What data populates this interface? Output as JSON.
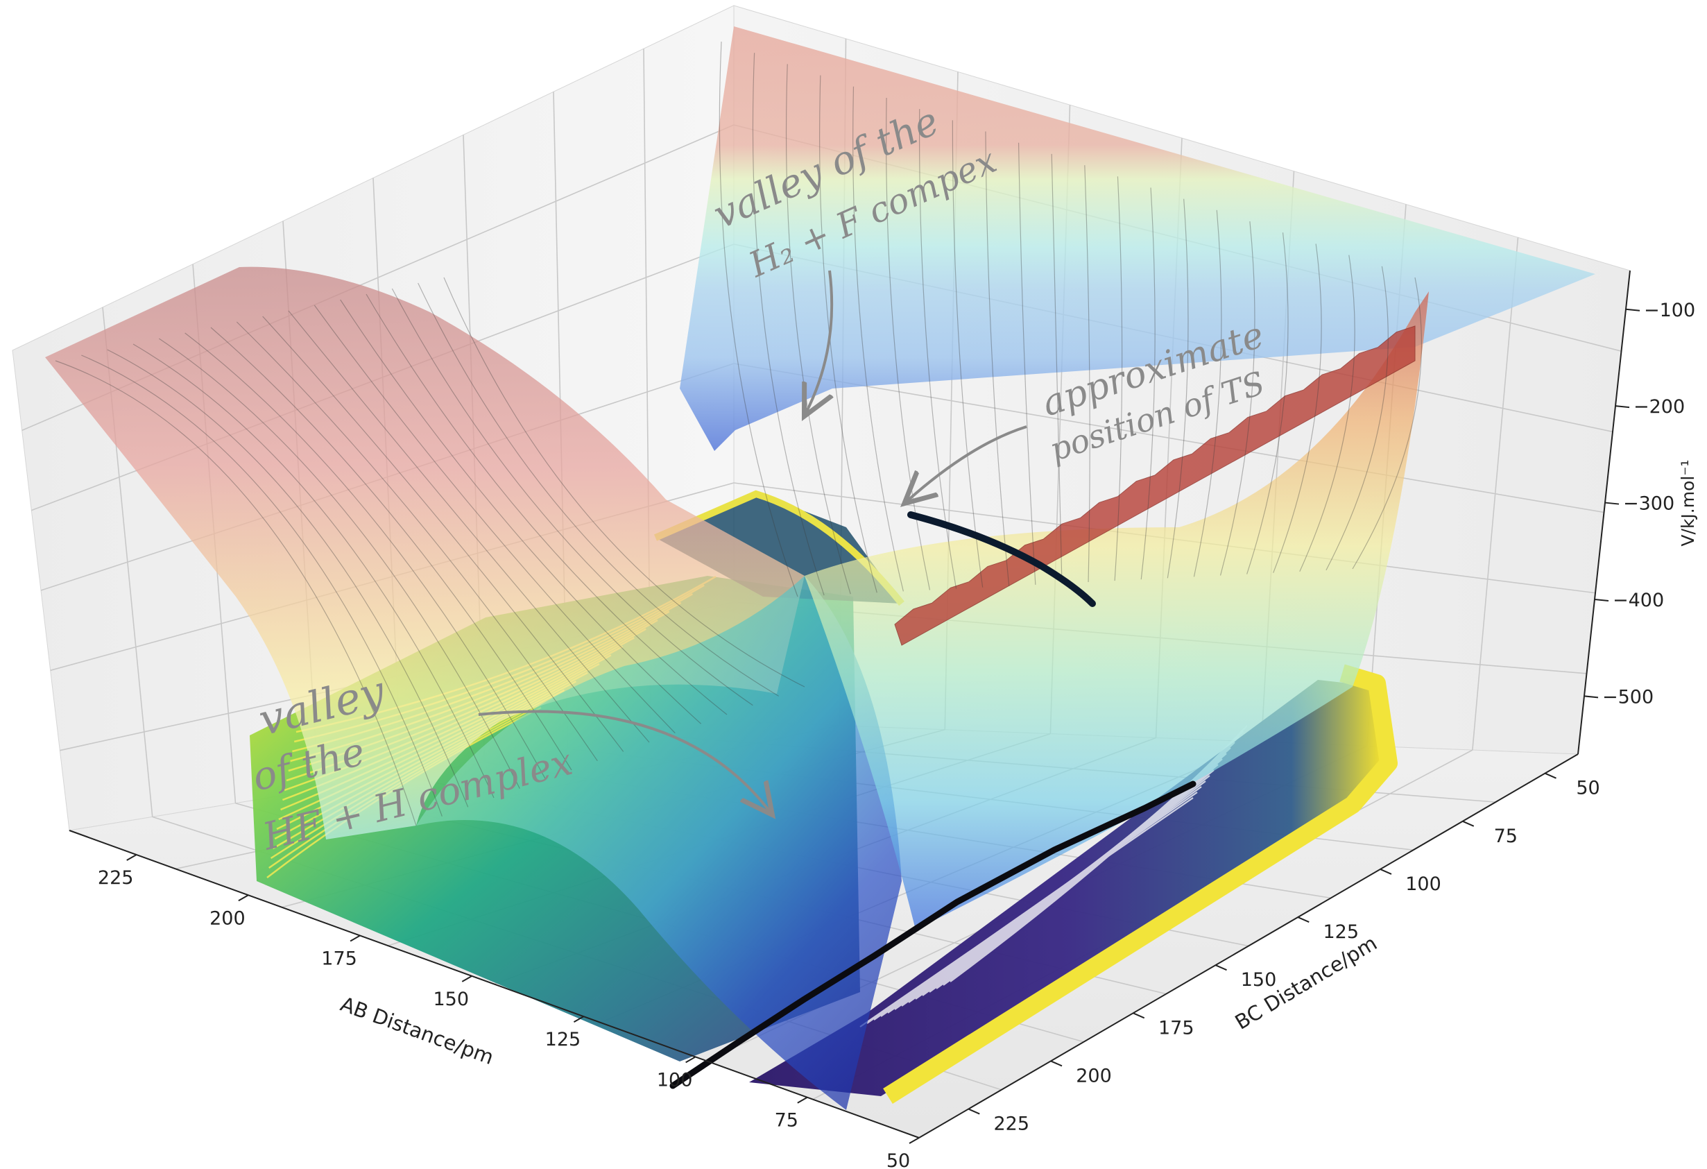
{
  "chart_data": {
    "type": "surface",
    "xlabel": "AB Distance/pm",
    "ylabel": "BC Distance/pm",
    "zlabel": "V/kJ.mol⁻¹",
    "x_ticks": [
      "50",
      "75",
      "100",
      "125",
      "150",
      "175",
      "200",
      "225"
    ],
    "y_ticks": [
      "50",
      "75",
      "100",
      "125",
      "150",
      "175",
      "200",
      "225"
    ],
    "z_ticks": [
      "−100",
      "−200",
      "−300",
      "−400",
      "−500"
    ],
    "xlim": [
      50,
      240
    ],
    "ylim": [
      40,
      240
    ],
    "zlim": [
      -560,
      -60
    ],
    "surface_colormap": "jet",
    "contour_colormap": "viridis",
    "trajectory_color": "#0b1a2e",
    "annotations": [
      {
        "id": "h2f",
        "lines": [
          "valley of the",
          "H₂ + F compex"
        ]
      },
      {
        "id": "ts",
        "lines": [
          "approximate",
          "position of TS"
        ]
      },
      {
        "id": "hfh",
        "lines": [
          "valley",
          "of   the",
          "HF + H  complex"
        ]
      }
    ]
  }
}
